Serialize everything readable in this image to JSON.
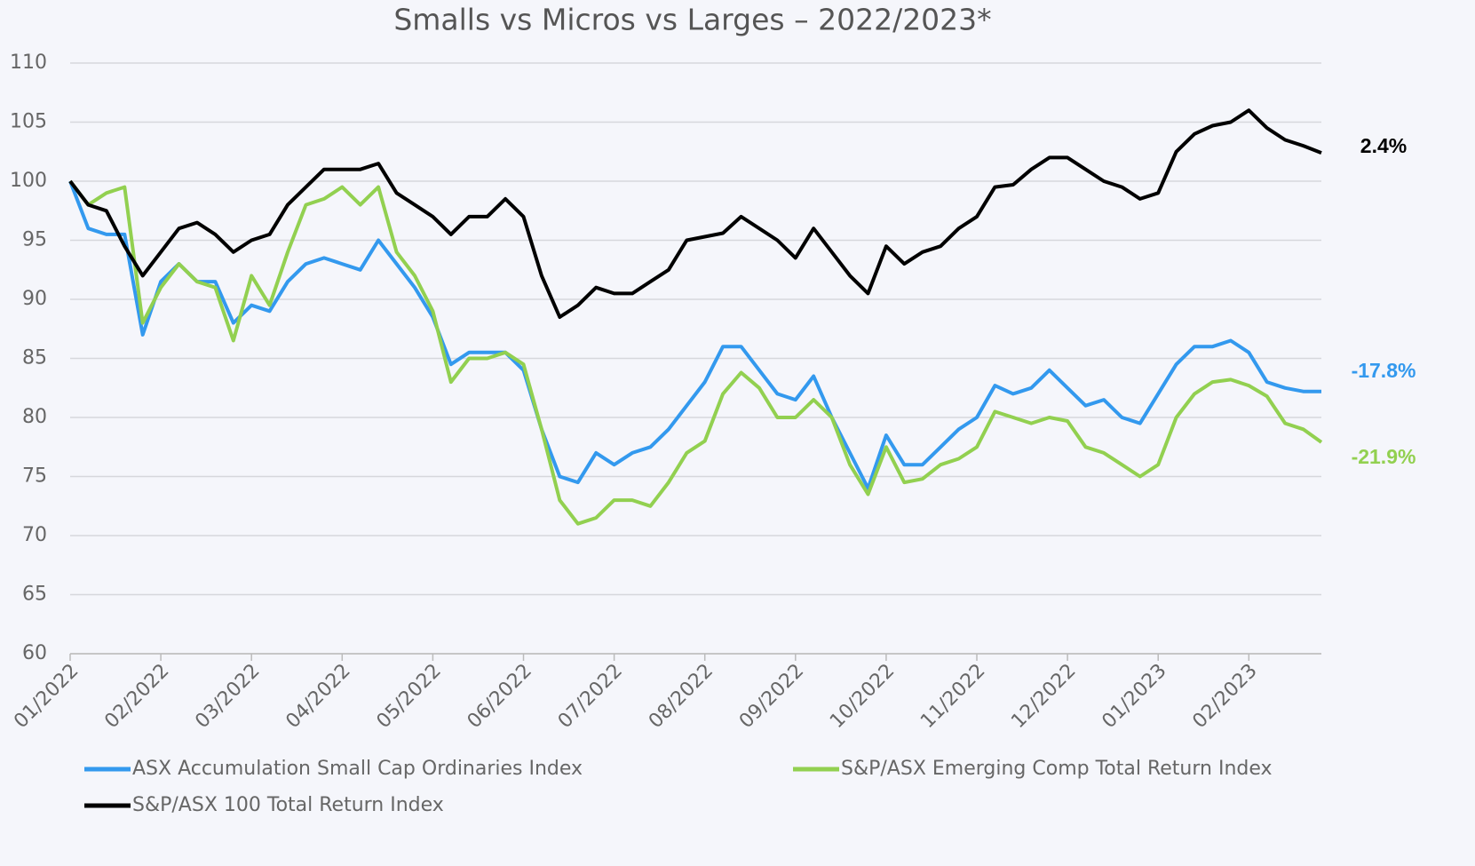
{
  "chart_data": {
    "type": "line",
    "title": "Smalls vs Micros vs Larges – 2022/2023*",
    "categories": [
      "01/2022",
      null,
      null,
      null,
      null,
      "02/2022",
      null,
      null,
      null,
      null,
      "03/2022",
      null,
      null,
      null,
      null,
      "04/2022",
      null,
      null,
      null,
      null,
      "05/2022",
      null,
      null,
      null,
      null,
      "06/2022",
      null,
      null,
      null,
      null,
      "07/2022",
      null,
      null,
      null,
      null,
      "08/2022",
      null,
      null,
      null,
      null,
      "09/2022",
      null,
      null,
      null,
      null,
      "10/2022",
      null,
      null,
      null,
      null,
      "11/2022",
      null,
      null,
      null,
      null,
      "12/2022",
      null,
      null,
      null,
      null,
      "01/2023",
      null,
      null,
      null,
      null,
      "02/2023",
      null,
      null,
      null,
      null
    ],
    "series": [
      {
        "name": "ASX Accumulation Small Cap Ordinaries Index",
        "color": "#3399ee",
        "end_label": "-17.8%",
        "values": [
          100,
          96,
          95.5,
          95.5,
          87,
          91.5,
          93,
          91.5,
          91.5,
          88,
          89.5,
          89,
          91.5,
          93,
          93.5,
          93,
          92.5,
          95,
          93,
          91,
          88.5,
          84.5,
          85.5,
          85.5,
          85.5,
          84,
          79,
          75,
          74.5,
          77,
          76,
          77,
          77.5,
          79,
          81,
          83,
          86,
          86,
          84,
          82,
          81.5,
          83.5,
          80,
          77,
          74,
          78.5,
          76,
          76,
          77.5,
          79,
          80,
          82.7,
          82,
          82.5,
          84,
          82.5,
          81,
          81.5,
          80,
          79.5,
          82,
          84.5,
          86,
          86,
          86.5,
          85.5,
          83,
          82.5,
          82.2,
          82.2
        ]
      },
      {
        "name": "S&P/ASX Emerging Comp Total Return Index",
        "color": "#92d050",
        "end_label": "-21.9%",
        "values": [
          100,
          98,
          99,
          99.5,
          88,
          91,
          93,
          91.5,
          91,
          86.5,
          92,
          89.5,
          94,
          98,
          98.5,
          99.5,
          98,
          99.5,
          94,
          92,
          89,
          83,
          85,
          85,
          85.5,
          84.5,
          79,
          73,
          71,
          71.5,
          73,
          73,
          72.5,
          74.5,
          77,
          78,
          82,
          83.8,
          82.5,
          80,
          80,
          81.5,
          80,
          76,
          73.5,
          77.5,
          74.5,
          74.8,
          76,
          76.5,
          77.5,
          80.5,
          80,
          79.5,
          80,
          79.7,
          77.5,
          77,
          76,
          75,
          76,
          80,
          82,
          83,
          83.2,
          82.7,
          81.8,
          79.5,
          79,
          77.9
        ]
      },
      {
        "name": "S&P/ASX 100 Total Return Index",
        "color": "#000000",
        "end_label": "2.4%",
        "values": [
          100,
          98,
          97.5,
          94.5,
          92,
          94,
          96,
          96.5,
          95.5,
          94,
          95,
          95.5,
          98,
          99.5,
          101,
          101,
          101,
          101.5,
          99,
          98,
          97,
          95.5,
          97,
          97,
          98.5,
          97,
          92,
          88.5,
          89.5,
          91,
          90.5,
          90.5,
          91.5,
          92.5,
          95,
          95.3,
          95.6,
          97,
          96,
          95,
          93.5,
          96,
          94,
          92,
          90.5,
          94.5,
          93,
          94,
          94.5,
          96,
          97,
          99.5,
          99.7,
          101,
          102,
          102,
          101,
          100,
          99.5,
          98.5,
          99,
          102.5,
          104,
          104.7,
          105,
          106,
          104.5,
          103.5,
          103,
          102.4
        ]
      }
    ],
    "ylim": [
      60,
      110
    ],
    "yticks": [
      60,
      65,
      70,
      75,
      80,
      85,
      90,
      95,
      100,
      105,
      110
    ],
    "grid": true
  }
}
